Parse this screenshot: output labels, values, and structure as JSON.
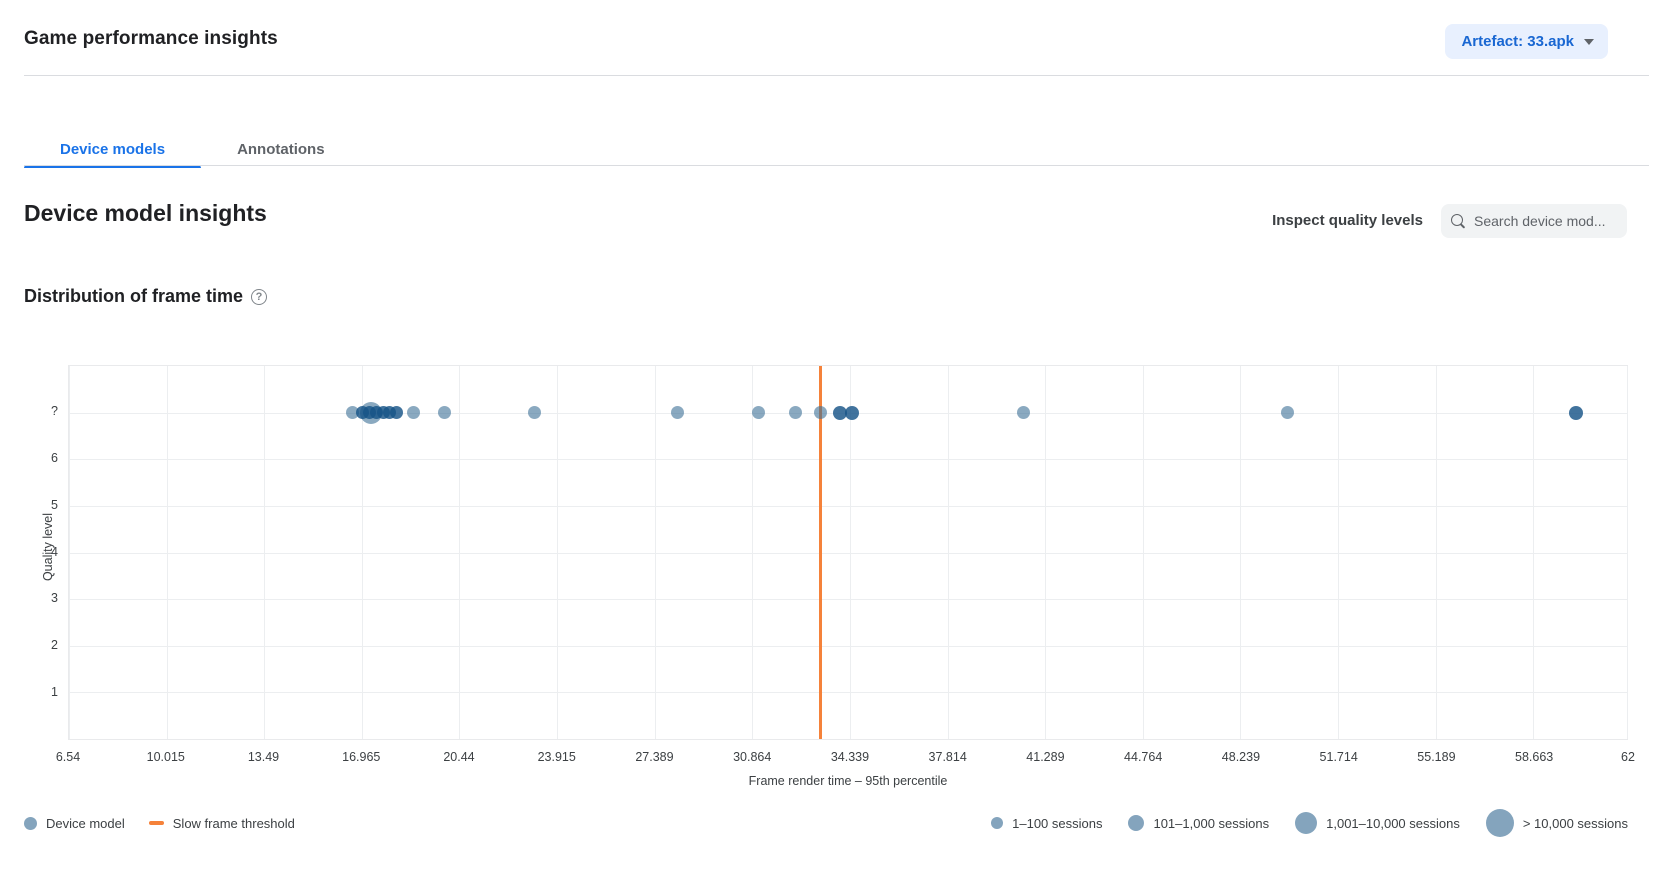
{
  "header": {
    "title": "Game performance insights",
    "artefact_button": {
      "label": "Artefact: 33.apk"
    }
  },
  "tabs": [
    {
      "label": "Device models",
      "active": true
    },
    {
      "label": "Annotations",
      "active": false
    }
  ],
  "section": {
    "title": "Device model insights",
    "inspect_label": "Inspect quality levels",
    "search_placeholder": "Search device mod..."
  },
  "chart_data": {
    "type": "scatter",
    "title": "Distribution of frame time",
    "xlabel": "Frame render time – 95th percentile",
    "ylabel": "Quality level",
    "xlim": [
      6.54,
      62
    ],
    "x_ticks": [
      "6.54",
      "10.015",
      "13.49",
      "16.965",
      "20.44",
      "23.915",
      "27.389",
      "30.864",
      "34.339",
      "37.814",
      "41.289",
      "44.764",
      "48.239",
      "51.714",
      "55.189",
      "58.663",
      "62"
    ],
    "y_categories": [
      "?",
      "6",
      "5",
      "4",
      "3",
      "2",
      "1"
    ],
    "grid": true,
    "threshold": {
      "label": "Slow frame threshold",
      "value": 33.28,
      "color": "#f5823a"
    },
    "point_colors": {
      "light": "rgba(60,111,150,0.6)",
      "dark": "rgba(23,84,135,0.82)"
    },
    "points": [
      {
        "x": 16.64,
        "y": "?",
        "size": 13,
        "shade": "light"
      },
      {
        "x": 17.28,
        "y": "?",
        "size": 22,
        "shade": "light"
      },
      {
        "x": 17.0,
        "y": "?",
        "size": 13,
        "shade": "dark"
      },
      {
        "x": 17.25,
        "y": "?",
        "size": 13,
        "shade": "dark"
      },
      {
        "x": 17.5,
        "y": "?",
        "size": 13,
        "shade": "dark"
      },
      {
        "x": 17.75,
        "y": "?",
        "size": 13,
        "shade": "dark"
      },
      {
        "x": 17.95,
        "y": "?",
        "size": 13,
        "shade": "dark"
      },
      {
        "x": 18.2,
        "y": "?",
        "size": 13,
        "shade": "dark"
      },
      {
        "x": 18.8,
        "y": "?",
        "size": 13,
        "shade": "light"
      },
      {
        "x": 19.9,
        "y": "?",
        "size": 13,
        "shade": "light"
      },
      {
        "x": 23.1,
        "y": "?",
        "size": 13,
        "shade": "light"
      },
      {
        "x": 28.2,
        "y": "?",
        "size": 13,
        "shade": "light"
      },
      {
        "x": 31.1,
        "y": "?",
        "size": 13,
        "shade": "light"
      },
      {
        "x": 32.4,
        "y": "?",
        "size": 13,
        "shade": "light"
      },
      {
        "x": 33.3,
        "y": "?",
        "size": 13,
        "shade": "light"
      },
      {
        "x": 34.0,
        "y": "?",
        "size": 14,
        "shade": "dark"
      },
      {
        "x": 34.4,
        "y": "?",
        "size": 14,
        "shade": "dark"
      },
      {
        "x": 40.5,
        "y": "?",
        "size": 13,
        "shade": "light"
      },
      {
        "x": 49.9,
        "y": "?",
        "size": 13,
        "shade": "light"
      },
      {
        "x": 60.2,
        "y": "?",
        "size": 14,
        "shade": "dark"
      }
    ]
  },
  "legend": {
    "device_model_label": "Device model",
    "threshold_label": "Slow frame threshold",
    "dot_color": "#84a4bd",
    "sizes": [
      {
        "label": "1–100 sessions",
        "size": 12
      },
      {
        "label": "101–1,000 sessions",
        "size": 16
      },
      {
        "label": "1,001–10,000 sessions",
        "size": 22
      },
      {
        "label": "> 10,000 sessions",
        "size": 28
      }
    ]
  },
  "colors": {
    "accent_blue": "#1a73e8",
    "button_bg": "#e8f0fe",
    "button_text": "#1967d2",
    "threshold_orange": "#f5823a",
    "gridline": "#eceef0"
  }
}
